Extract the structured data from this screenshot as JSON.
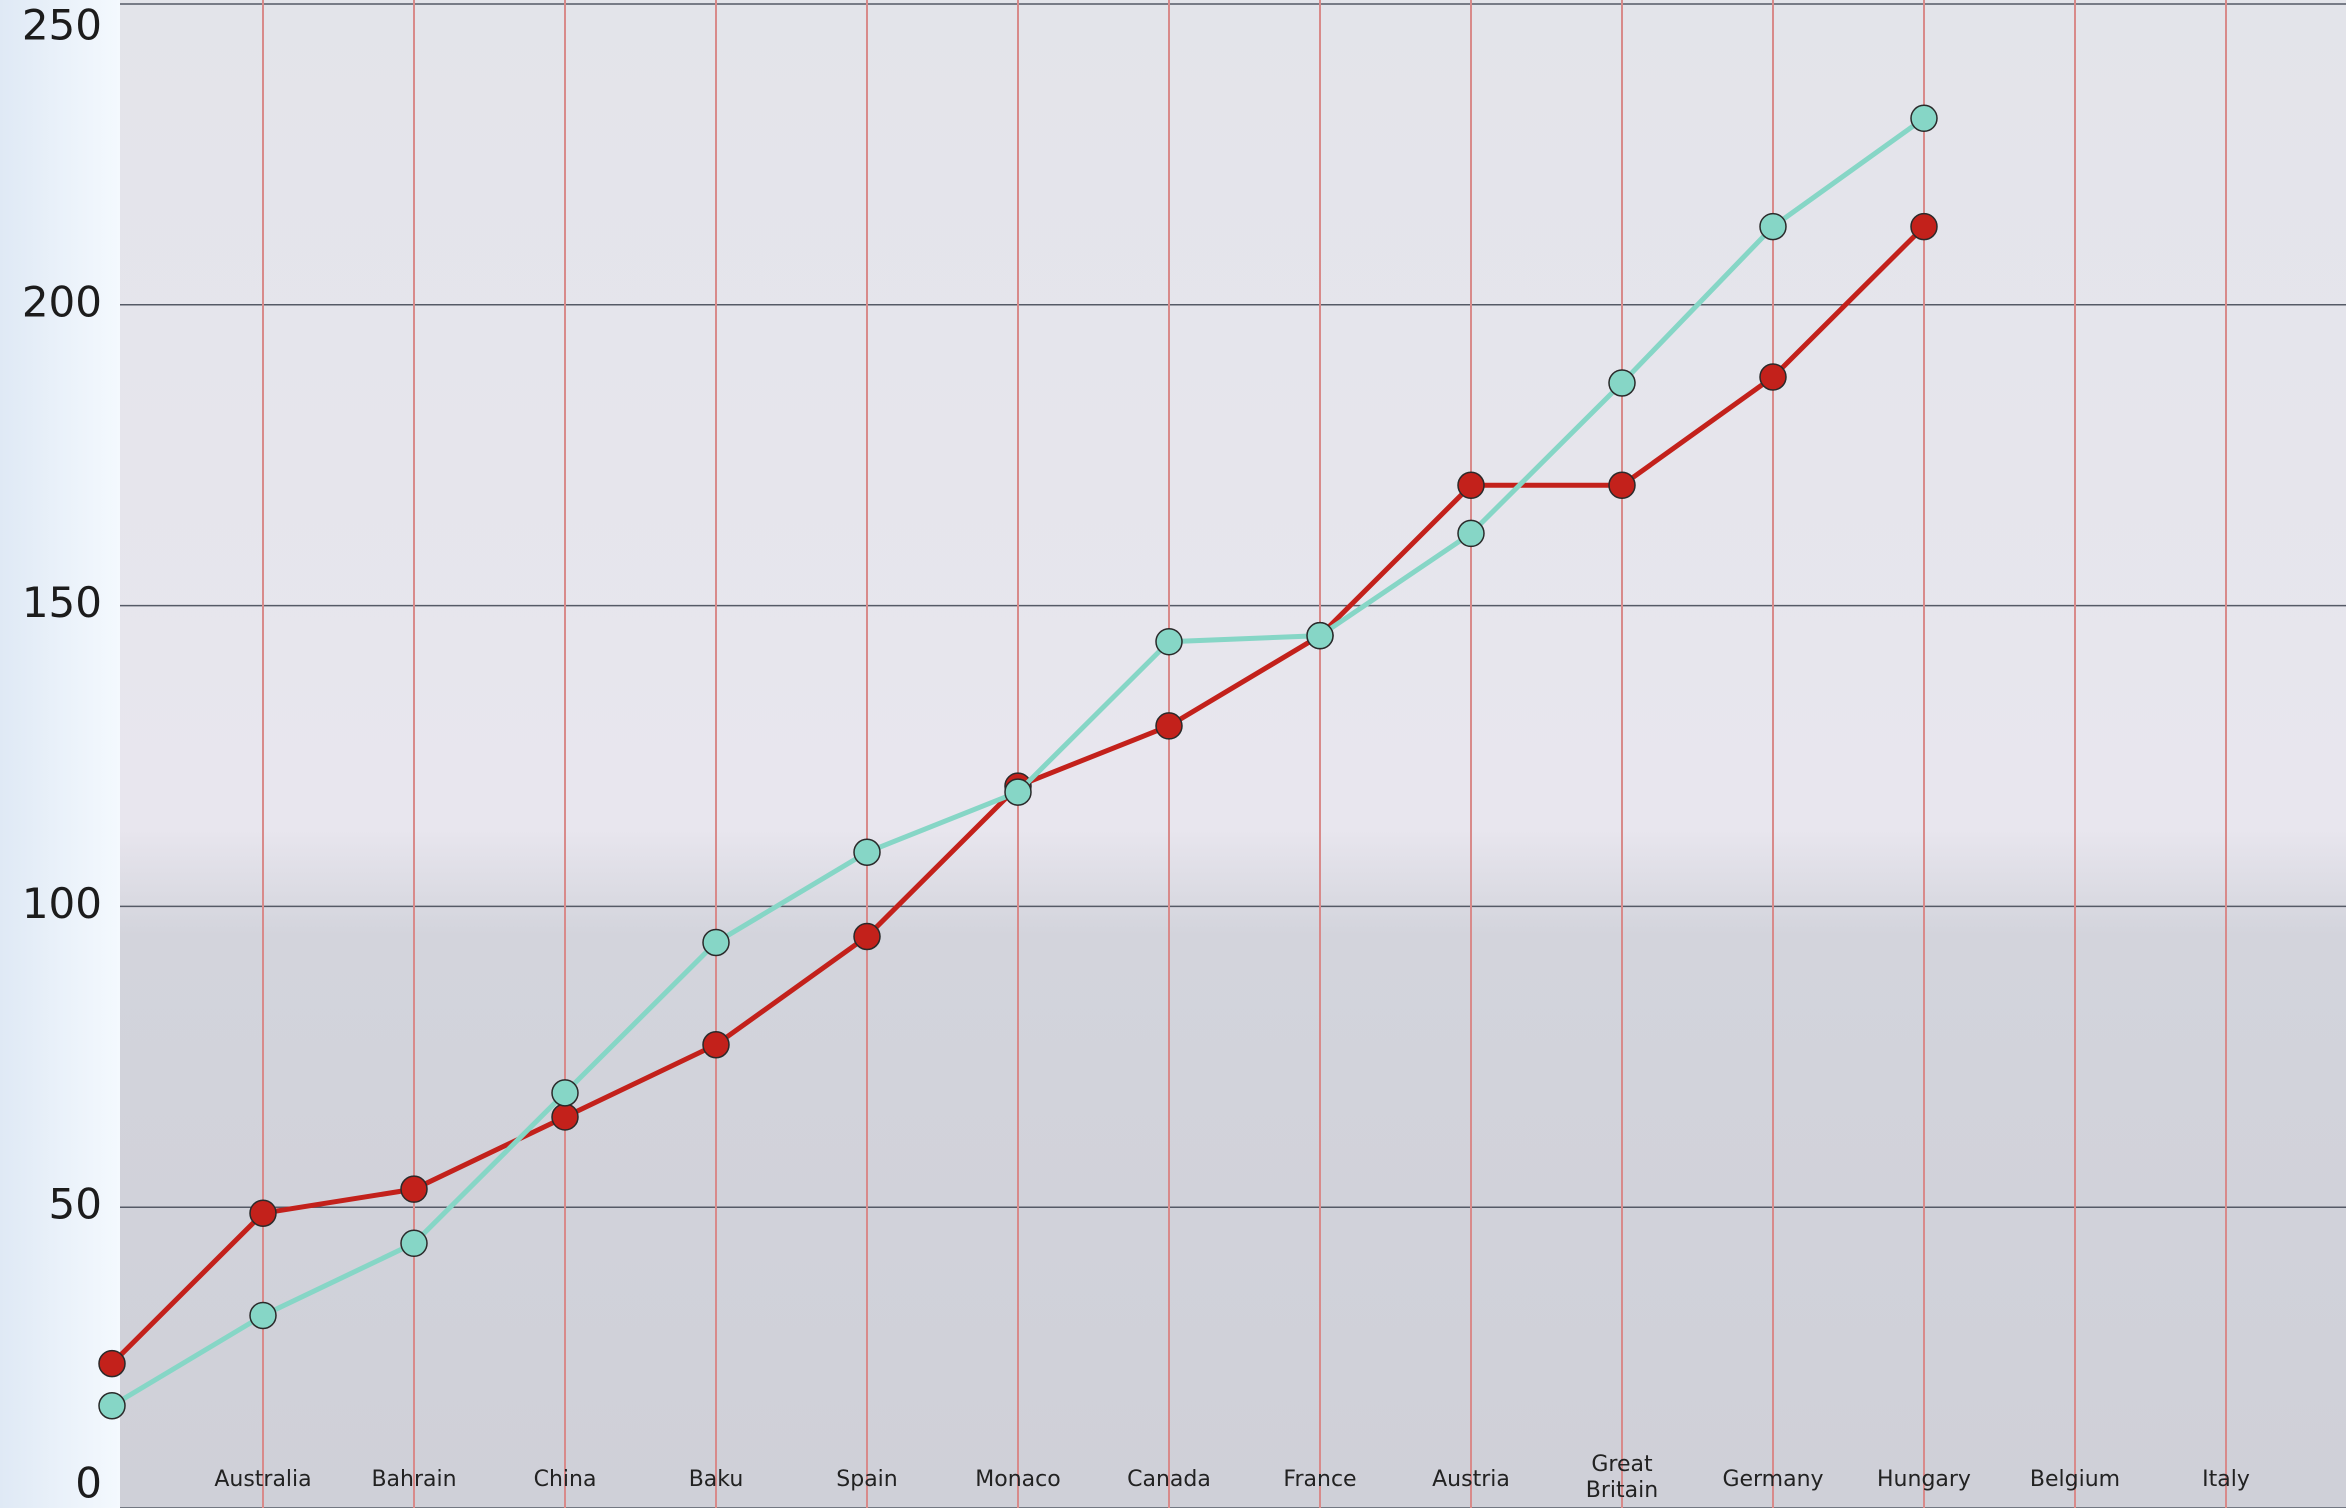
{
  "chart_data": {
    "type": "line",
    "categories": [
      null,
      "Australia",
      "Bahrain",
      "China",
      "Baku",
      "Spain",
      "Monaco",
      "Canada",
      "France",
      "Austria",
      "Great Britain",
      "Germany",
      "Hungary",
      "Belgium",
      "Italy"
    ],
    "series": [
      {
        "color": "#c3211b",
        "values": [
          24,
          49,
          53,
          65,
          77,
          95,
          120,
          130,
          145,
          170,
          170,
          188,
          213,
          null,
          null
        ]
      },
      {
        "color": "#86d6c6",
        "values": [
          17,
          32,
          44,
          69,
          94,
          109,
          119,
          144,
          145,
          162,
          187,
          213,
          231,
          null,
          null
        ]
      }
    ],
    "ylim": [
      0,
      250
    ],
    "yticks": [
      0,
      50,
      100,
      150,
      200,
      250
    ],
    "grid": true
  }
}
